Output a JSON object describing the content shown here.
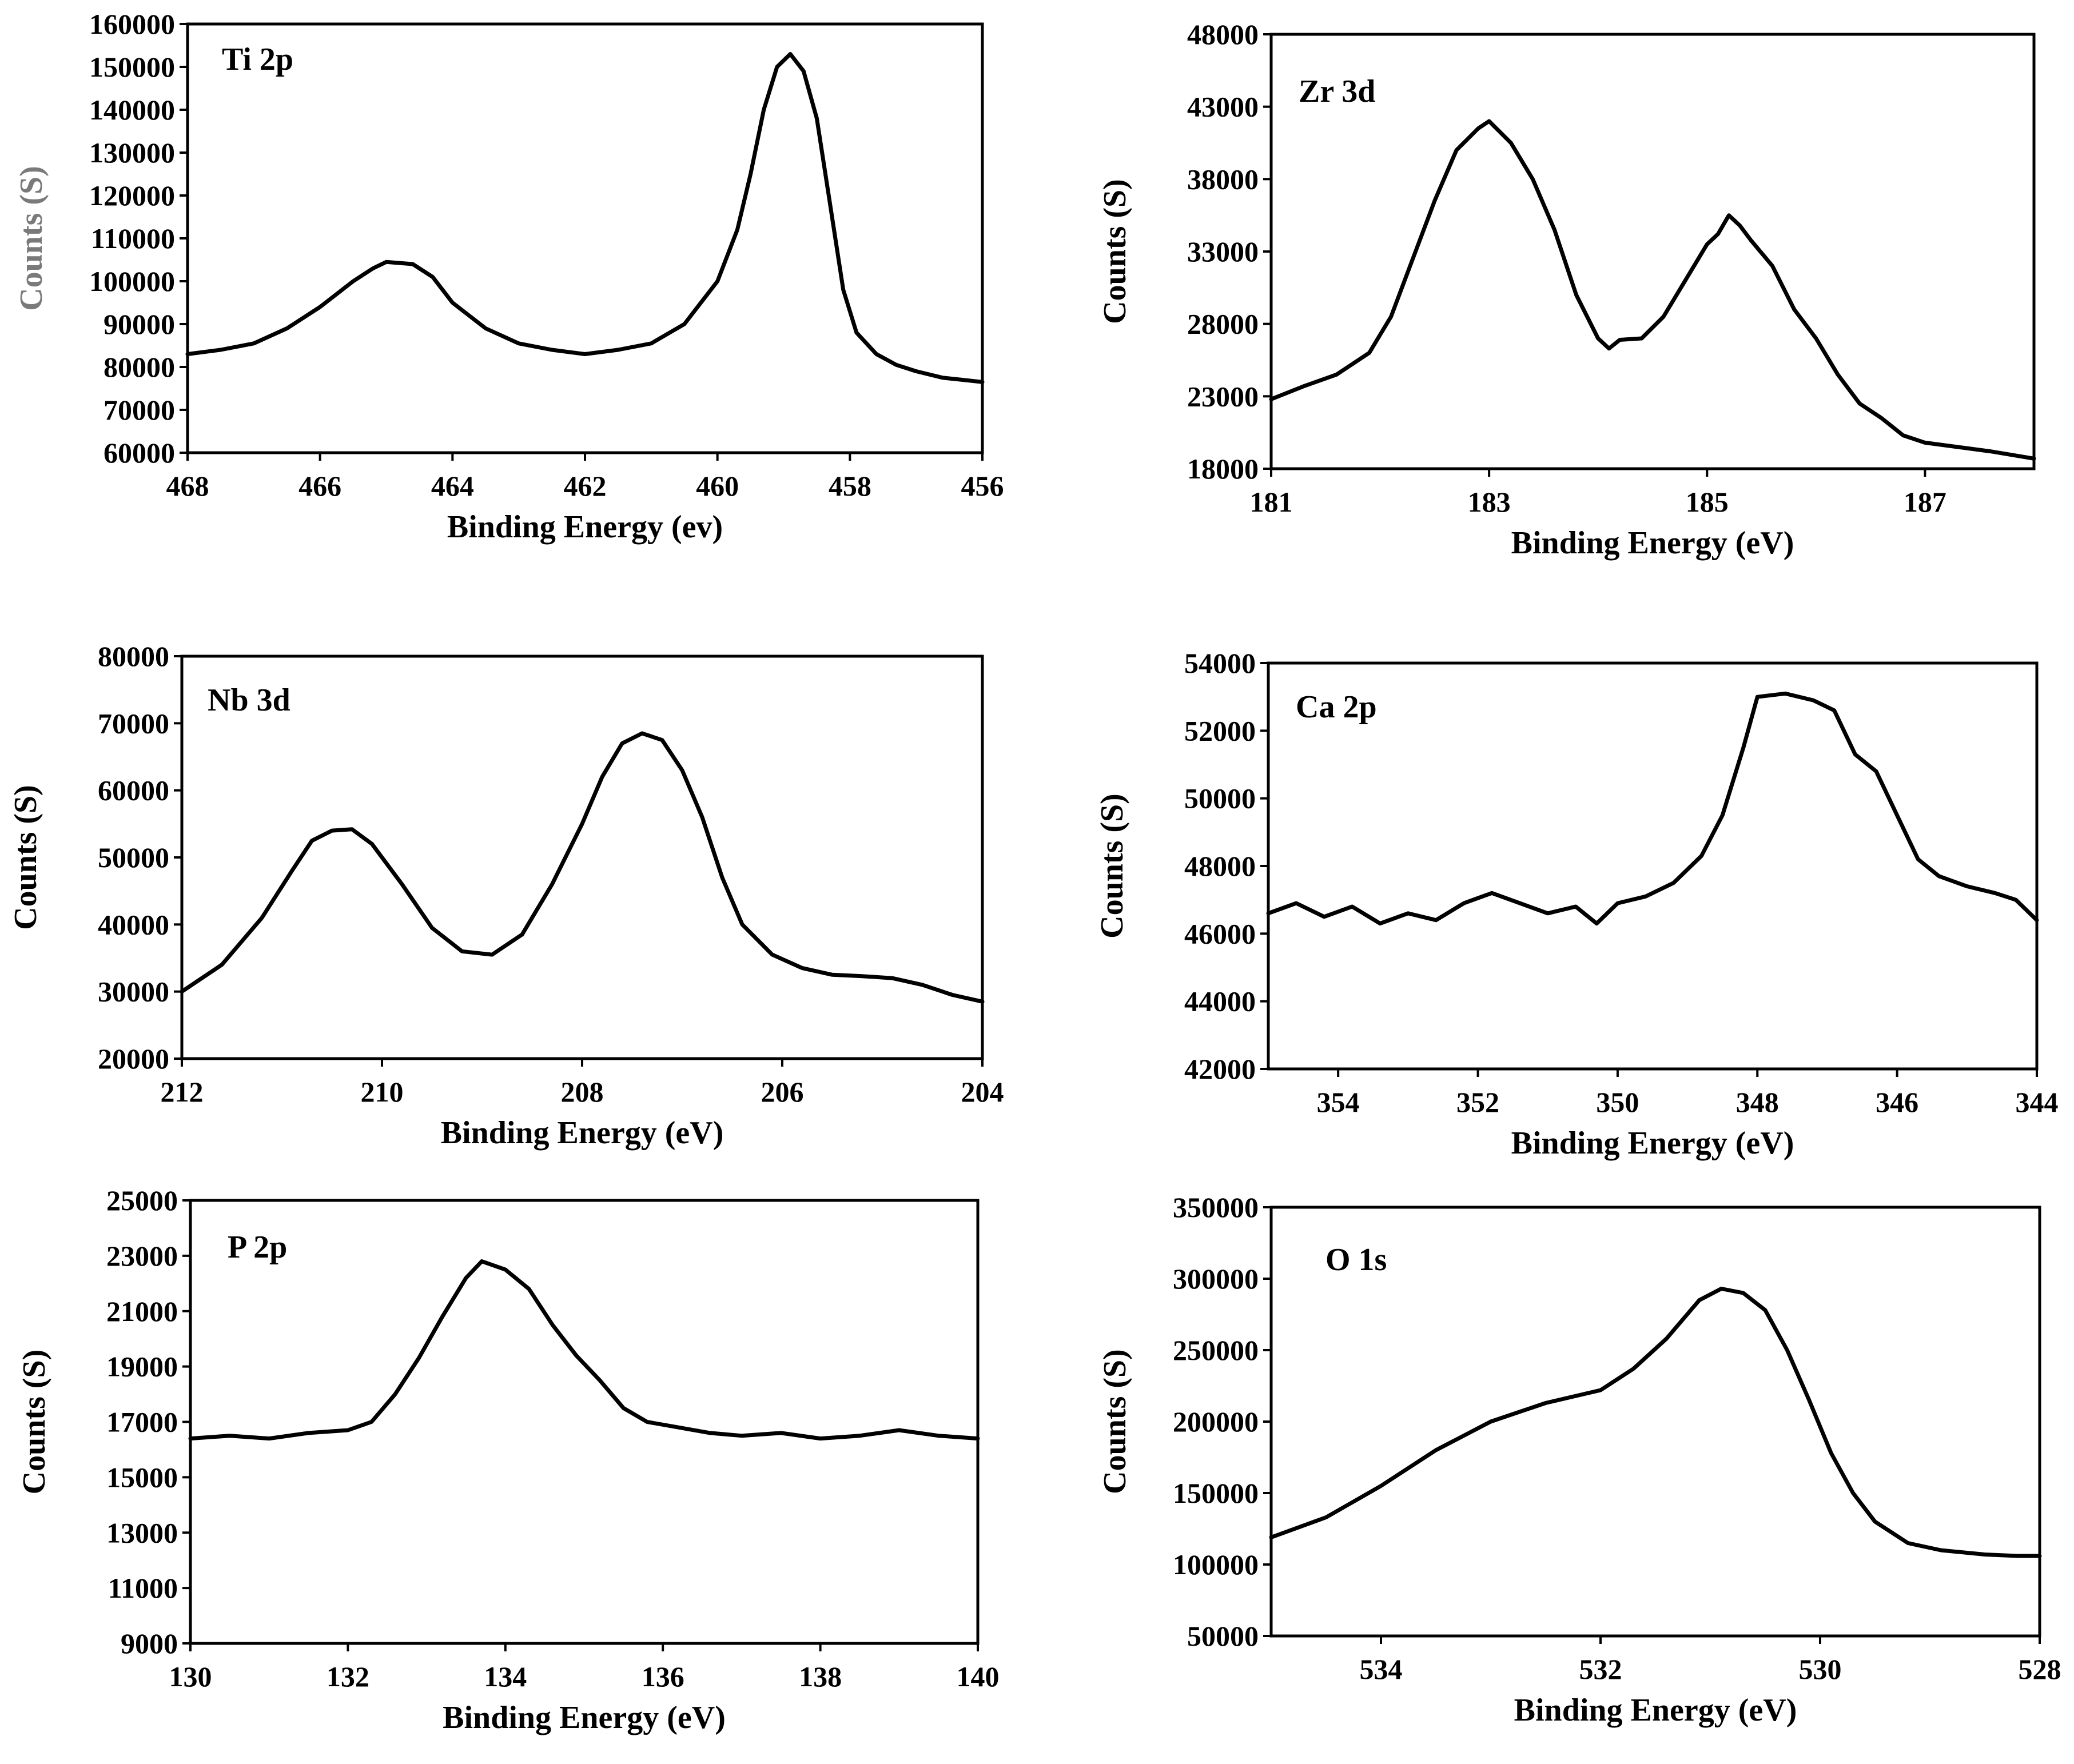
{
  "chart_data": [
    {
      "type": "line",
      "title": "Ti 2p",
      "xlabel": "Binding Energy (ev)",
      "ylabel": "Counts (S)",
      "xlim": [
        468,
        456
      ],
      "ylim": [
        60000,
        160000
      ],
      "xticks": [
        "468",
        "466",
        "464",
        "462",
        "460",
        "458",
        "456"
      ],
      "yticks": [
        "60000",
        "70000",
        "80000",
        "90000",
        "100000",
        "110000",
        "120000",
        "130000",
        "140000",
        "150000",
        "160000"
      ],
      "x_reversed": true,
      "series": [
        {
          "points": [
            [
              468,
              83000
            ],
            [
              467.5,
              84000
            ],
            [
              467,
              85500
            ],
            [
              466.5,
              89000
            ],
            [
              466,
              94000
            ],
            [
              465.5,
              100000
            ],
            [
              465.2,
              103000
            ],
            [
              465,
              104500
            ],
            [
              464.6,
              104000
            ],
            [
              464.3,
              101000
            ],
            [
              464,
              95000
            ],
            [
              463.5,
              89000
            ],
            [
              463,
              85500
            ],
            [
              462.5,
              84000
            ],
            [
              462,
              83000
            ],
            [
              461.5,
              84000
            ],
            [
              461,
              85500
            ],
            [
              460.5,
              90000
            ],
            [
              460,
              100000
            ],
            [
              459.7,
              112000
            ],
            [
              459.5,
              125000
            ],
            [
              459.3,
              140000
            ],
            [
              459.1,
              150000
            ],
            [
              458.9,
              153000
            ],
            [
              458.7,
              149000
            ],
            [
              458.5,
              138000
            ],
            [
              458.3,
              118000
            ],
            [
              458.1,
              98000
            ],
            [
              457.9,
              88000
            ],
            [
              457.6,
              83000
            ],
            [
              457.3,
              80500
            ],
            [
              457,
              79000
            ],
            [
              456.6,
              77500
            ],
            [
              456.3,
              77000
            ],
            [
              456,
              76500
            ]
          ]
        }
      ]
    },
    {
      "type": "line",
      "title": "Zr 3d",
      "xlabel": "Binding Energy (eV)",
      "ylabel": "Counts (S)",
      "xlim": [
        181,
        188
      ],
      "ylim": [
        18000,
        48000
      ],
      "xticks": [
        "181",
        "183",
        "185",
        "187"
      ],
      "yticks": [
        "18000",
        "23000",
        "28000",
        "33000",
        "38000",
        "43000",
        "48000"
      ],
      "x_reversed": false,
      "series": [
        {
          "points": [
            [
              181,
              22800
            ],
            [
              181.3,
              23700
            ],
            [
              181.6,
              24500
            ],
            [
              181.9,
              26000
            ],
            [
              182.1,
              28500
            ],
            [
              182.3,
              32500
            ],
            [
              182.5,
              36500
            ],
            [
              182.7,
              40000
            ],
            [
              182.9,
              41500
            ],
            [
              183,
              42000
            ],
            [
              183.2,
              40500
            ],
            [
              183.4,
              38000
            ],
            [
              183.6,
              34500
            ],
            [
              183.8,
              30000
            ],
            [
              184,
              27000
            ],
            [
              184.1,
              26300
            ],
            [
              184.2,
              26900
            ],
            [
              184.4,
              27000
            ],
            [
              184.6,
              28500
            ],
            [
              184.8,
              31000
            ],
            [
              185,
              33500
            ],
            [
              185.1,
              34200
            ],
            [
              185.2,
              35500
            ],
            [
              185.3,
              34800
            ],
            [
              185.4,
              33800
            ],
            [
              185.6,
              32000
            ],
            [
              185.8,
              29000
            ],
            [
              186,
              27000
            ],
            [
              186.2,
              24500
            ],
            [
              186.4,
              22500
            ],
            [
              186.6,
              21500
            ],
            [
              186.8,
              20300
            ],
            [
              187,
              19800
            ],
            [
              187.3,
              19500
            ],
            [
              187.6,
              19200
            ],
            [
              188,
              18700
            ]
          ]
        }
      ]
    },
    {
      "type": "line",
      "title": "Nb 3d",
      "xlabel": "Binding Energy (eV)",
      "ylabel": "Counts (S)",
      "xlim": [
        212,
        204
      ],
      "ylim": [
        20000,
        80000
      ],
      "xticks": [
        "212",
        "210",
        "208",
        "206",
        "204"
      ],
      "yticks": [
        "20000",
        "30000",
        "40000",
        "50000",
        "60000",
        "70000",
        "80000"
      ],
      "x_reversed": true,
      "series": [
        {
          "points": [
            [
              212,
              30000
            ],
            [
              211.6,
              34000
            ],
            [
              211.2,
              41000
            ],
            [
              210.9,
              48000
            ],
            [
              210.7,
              52500
            ],
            [
              210.5,
              54000
            ],
            [
              210.3,
              54200
            ],
            [
              210.1,
              52000
            ],
            [
              209.8,
              46000
            ],
            [
              209.5,
              39500
            ],
            [
              209.2,
              36000
            ],
            [
              208.9,
              35500
            ],
            [
              208.6,
              38500
            ],
            [
              208.3,
              46000
            ],
            [
              208,
              55000
            ],
            [
              207.8,
              62000
            ],
            [
              207.6,
              67000
            ],
            [
              207.4,
              68500
            ],
            [
              207.2,
              67500
            ],
            [
              207,
              63000
            ],
            [
              206.8,
              56000
            ],
            [
              206.6,
              47000
            ],
            [
              206.4,
              40000
            ],
            [
              206.1,
              35500
            ],
            [
              205.8,
              33500
            ],
            [
              205.5,
              32500
            ],
            [
              205.2,
              32300
            ],
            [
              204.9,
              32000
            ],
            [
              204.6,
              31000
            ],
            [
              204.3,
              29500
            ],
            [
              204,
              28500
            ]
          ]
        }
      ]
    },
    {
      "type": "line",
      "title": "Ca 2p",
      "xlabel": "Binding Energy (eV)",
      "ylabel": "Counts (S)",
      "xlim": [
        355,
        344
      ],
      "ylim": [
        42000,
        54000
      ],
      "xticks": [
        "354",
        "352",
        "350",
        "348",
        "346",
        "344"
      ],
      "yticks": [
        "42000",
        "44000",
        "46000",
        "48000",
        "50000",
        "52000",
        "54000"
      ],
      "x_reversed": true,
      "series": [
        {
          "points": [
            [
              355,
              46600
            ],
            [
              354.6,
              46900
            ],
            [
              354.2,
              46500
            ],
            [
              353.8,
              46800
            ],
            [
              353.4,
              46300
            ],
            [
              353,
              46600
            ],
            [
              352.6,
              46400
            ],
            [
              352.2,
              46900
            ],
            [
              351.8,
              47200
            ],
            [
              351.4,
              46900
            ],
            [
              351,
              46600
            ],
            [
              350.6,
              46800
            ],
            [
              350.3,
              46300
            ],
            [
              350,
              46900
            ],
            [
              349.6,
              47100
            ],
            [
              349.2,
              47500
            ],
            [
              348.8,
              48300
            ],
            [
              348.5,
              49500
            ],
            [
              348.2,
              51500
            ],
            [
              348,
              53000
            ],
            [
              347.6,
              53100
            ],
            [
              347.2,
              52900
            ],
            [
              346.9,
              52600
            ],
            [
              346.6,
              51300
            ],
            [
              346.3,
              50800
            ],
            [
              346,
              49500
            ],
            [
              345.7,
              48200
            ],
            [
              345.4,
              47700
            ],
            [
              345,
              47400
            ],
            [
              344.6,
              47200
            ],
            [
              344.3,
              47000
            ],
            [
              344,
              46400
            ]
          ]
        }
      ]
    },
    {
      "type": "line",
      "title": "P 2p",
      "xlabel": "Binding Energy (eV)",
      "ylabel": "Counts (S)",
      "xlim": [
        130,
        140
      ],
      "ylim": [
        9000,
        25000
      ],
      "xticks": [
        "130",
        "132",
        "134",
        "136",
        "138",
        "140"
      ],
      "yticks": [
        "9000",
        "11000",
        "13000",
        "15000",
        "17000",
        "19000",
        "21000",
        "23000",
        "25000"
      ],
      "x_reversed": false,
      "series": [
        {
          "points": [
            [
              130,
              16400
            ],
            [
              130.5,
              16500
            ],
            [
              131,
              16400
            ],
            [
              131.5,
              16600
            ],
            [
              132,
              16700
            ],
            [
              132.3,
              17000
            ],
            [
              132.6,
              18000
            ],
            [
              132.9,
              19300
            ],
            [
              133.2,
              20800
            ],
            [
              133.5,
              22200
            ],
            [
              133.7,
              22800
            ],
            [
              134,
              22500
            ],
            [
              134.3,
              21800
            ],
            [
              134.6,
              20500
            ],
            [
              134.9,
              19400
            ],
            [
              135.2,
              18500
            ],
            [
              135.5,
              17500
            ],
            [
              135.8,
              17000
            ],
            [
              136.2,
              16800
            ],
            [
              136.6,
              16600
            ],
            [
              137,
              16500
            ],
            [
              137.5,
              16600
            ],
            [
              138,
              16400
            ],
            [
              138.5,
              16500
            ],
            [
              139,
              16700
            ],
            [
              139.5,
              16500
            ],
            [
              140,
              16400
            ]
          ]
        }
      ]
    },
    {
      "type": "line",
      "title": "O 1s",
      "xlabel": "Binding Energy (eV)",
      "ylabel": "Counts (S)",
      "xlim": [
        535,
        528
      ],
      "ylim": [
        50000,
        350000
      ],
      "xticks": [
        "534",
        "532",
        "530",
        "528"
      ],
      "yticks": [
        "50000",
        "100000",
        "150000",
        "200000",
        "250000",
        "300000",
        "350000"
      ],
      "x_reversed": true,
      "series": [
        {
          "points": [
            [
              535,
              119000
            ],
            [
              534.5,
              133000
            ],
            [
              534,
              155000
            ],
            [
              533.5,
              180000
            ],
            [
              533,
              200000
            ],
            [
              532.5,
              213000
            ],
            [
              532,
              222000
            ],
            [
              531.7,
              237000
            ],
            [
              531.4,
              258000
            ],
            [
              531.1,
              285000
            ],
            [
              530.9,
              293000
            ],
            [
              530.7,
              290000
            ],
            [
              530.5,
              278000
            ],
            [
              530.3,
              250000
            ],
            [
              530.1,
              215000
            ],
            [
              529.9,
              178000
            ],
            [
              529.7,
              150000
            ],
            [
              529.5,
              130000
            ],
            [
              529.2,
              115000
            ],
            [
              528.9,
              110000
            ],
            [
              528.5,
              107000
            ],
            [
              528.2,
              106000
            ],
            [
              528,
              106000
            ]
          ]
        }
      ]
    }
  ]
}
